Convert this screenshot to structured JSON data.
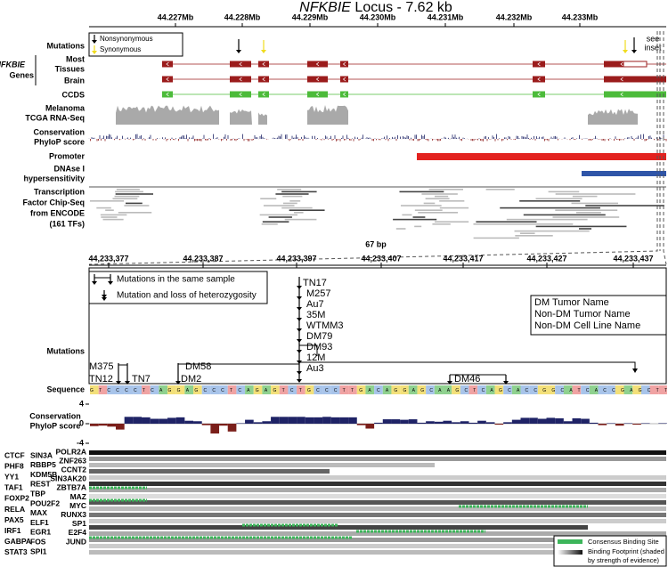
{
  "title": {
    "gene": "NFKBIE",
    "rest": " Locus - 7.62 kb"
  },
  "top_axis": [
    "44.227Mb",
    "44.228Mb",
    "44.229Mb",
    "44.230Mb",
    "44.231Mb",
    "44.232Mb",
    "44.233Mb"
  ],
  "track_labels": {
    "mutations": "Mutations",
    "gene_name": "NFKBIE",
    "genes": "Genes",
    "most": "Most",
    "tissues": "Tissues",
    "brain": "Brain",
    "ccds": "CCDS",
    "rna1": "Melanoma",
    "rna2": "TCGA RNA-Seq",
    "cons1": "Conservation",
    "cons2": "PhyloP score",
    "promoter": "Promoter",
    "dnase1": "DNAse I",
    "dnase2": "hypersensitivity",
    "tf1": "Transcription",
    "tf2": "Factor Chip-Seq",
    "tf3": "from ENCODE",
    "tf4": "(161 TFs)"
  },
  "mutation_legend": [
    "Nonsynonymous",
    "Synonymous"
  ],
  "inset_label": [
    "see",
    "inset"
  ],
  "zoom_label": "67 bp",
  "bottom_axis": [
    "44,233,377",
    "44,233,387",
    "44,233,397",
    "44,233,407",
    "44,233,417",
    "44,233,427",
    "44,233,437"
  ],
  "mutation_key": [
    "Mutations in the same sample",
    "Mutation and loss of heterozygosity"
  ],
  "name_key": [
    {
      "text": "DM Tumor Name",
      "color": "#111111"
    },
    {
      "text": "Non-DM Tumor Name",
      "color": "#2f5fa8"
    },
    {
      "text": "Non-DM Cell Line Name",
      "color": "#d8282c"
    }
  ],
  "mutations": [
    {
      "name": "TN17",
      "color": "#2f5fa8"
    },
    {
      "name": "M257",
      "color": "#d8282c"
    },
    {
      "name": "Au7",
      "color": "#111111"
    },
    {
      "name": "35M",
      "color": "#111111"
    },
    {
      "name": "WTMM3",
      "color": "#2f5fa8"
    },
    {
      "name": "DM79",
      "color": "#111111"
    },
    {
      "name": "DM93",
      "color": "#111111"
    },
    {
      "name": "12M",
      "color": "#111111"
    },
    {
      "name": "Au3",
      "color": "#111111"
    },
    {
      "name": "M375",
      "color": "#d8282c"
    },
    {
      "name": "TN12",
      "color": "#2f5fa8"
    },
    {
      "name": "TN7",
      "color": "#2f5fa8"
    },
    {
      "name": "DM58",
      "color": "#111111"
    },
    {
      "name": "DM2",
      "color": "#111111"
    },
    {
      "name": "DM46",
      "color": "#111111"
    }
  ],
  "panel_labels": {
    "mutations": "Mutations",
    "sequence": "Sequence",
    "cons1": "Conservation",
    "cons2": "PhyloP score"
  },
  "sequence": "GTCCCCTCAGGAGCCCTCAGAGTCTGCCCTTGACAGGAGCAAGCTCAGCACCGGCATCACCGAGCTT",
  "conservation": {
    "ylim": [
      -4,
      4
    ],
    "yticks": [
      4,
      0,
      -4
    ],
    "color_pos": "#1f2366",
    "color_neg": "#7a1f1a",
    "values": [
      -0.5,
      -0.4,
      -0.6,
      -1.2,
      1.4,
      1.4,
      1.3,
      1.0,
      1.0,
      1.2,
      1.3,
      0.6,
      0.5,
      -0.3,
      -2.0,
      -0.4,
      -1.6,
      0.1,
      0.8,
      0.3,
      0.5,
      1.4,
      1.4,
      1.4,
      1.4,
      1.3,
      1.3,
      1.4,
      1.3,
      1.3,
      1.3,
      -0.3,
      -1.0,
      0.2,
      0.9,
      0.9,
      0.8,
      0.9,
      0.2,
      0.5,
      0.4,
      0.6,
      0.3,
      0.5,
      0.2,
      0.6,
      0.3,
      -0.2,
      0.3,
      0.8,
      1.2,
      1.2,
      1.0,
      1.2,
      1.1,
      0.5,
      1.1,
      1.0,
      0.2,
      -0.3,
      0.1,
      -0.4,
      0.1,
      -0.2,
      0.1,
      0.0,
      0.1
    ]
  },
  "tf_columns": [
    [
      {
        "name": "CTCF",
        "color": "#111111"
      },
      {
        "name": "PHF8",
        "color": "#111111"
      },
      {
        "name": "YY1",
        "color": "#111111"
      },
      {
        "name": "TAF1",
        "color": "#111111"
      },
      {
        "name": "FOXP2",
        "color": "#111111"
      },
      {
        "name": "RELA",
        "color": "#111111"
      },
      {
        "name": "PAX5",
        "color": "#111111"
      },
      {
        "name": "IRF1",
        "color": "#111111"
      },
      {
        "name": "GABPA",
        "color": "#2e8b3a"
      },
      {
        "name": "STAT3",
        "color": "#111111"
      }
    ],
    [
      {
        "name": "SIN3A",
        "color": "#111111"
      },
      {
        "name": "RBBP5",
        "color": "#111111"
      },
      {
        "name": "KDM5B",
        "color": "#111111"
      },
      {
        "name": "REST",
        "color": "#111111"
      },
      {
        "name": "TBP",
        "color": "#111111"
      },
      {
        "name": "POU2F2",
        "color": "#111111"
      },
      {
        "name": "MAX",
        "color": "#111111"
      },
      {
        "name": "ELF1",
        "color": "#2e8b3a"
      },
      {
        "name": "EGR1",
        "color": "#111111"
      },
      {
        "name": "FOS",
        "color": "#111111"
      },
      {
        "name": "SPI1",
        "color": "#111111"
      }
    ],
    [
      {
        "name": "POLR2A",
        "color": "#111111"
      },
      {
        "name": "ZNF263",
        "color": "#111111"
      },
      {
        "name": "CCNT2",
        "color": "#111111"
      },
      {
        "name": "SIN3AK20",
        "color": "#111111"
      },
      {
        "name": "ZBTB7A",
        "color": "#111111"
      },
      {
        "name": "MAZ",
        "color": "#111111"
      },
      {
        "name": "MYC",
        "color": "#111111"
      },
      {
        "name": "RUNX3",
        "color": "#111111"
      },
      {
        "name": "SP1",
        "color": "#111111"
      },
      {
        "name": "E2F4",
        "color": "#111111"
      },
      {
        "name": "JUND",
        "color": "#111111"
      }
    ]
  ],
  "tf_legend": {
    "consensus": "Consensus Binding Site",
    "footprint": [
      "Binding Footprint (shaded",
      "by strength of evidence)"
    ],
    "consensus_color": "#3cb55a"
  }
}
